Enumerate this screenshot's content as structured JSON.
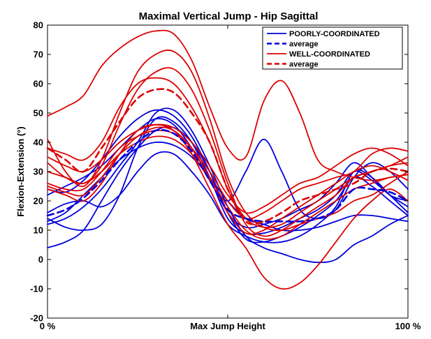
{
  "chart_data": {
    "type": "line",
    "title": "Maximal Vertical Jump - Hip Sagittal",
    "xlabel": "",
    "ylabel": "Flexion-Extension (°)",
    "xlim": [
      0,
      100
    ],
    "ylim": [
      -20,
      80
    ],
    "x_ticks": [
      {
        "value": 0,
        "label": "0 %"
      },
      {
        "value": 50,
        "label": "Max Jump Height"
      },
      {
        "value": 100,
        "label": "100 %"
      }
    ],
    "y_ticks": [
      -20,
      -10,
      0,
      10,
      20,
      30,
      40,
      50,
      60,
      70,
      80
    ],
    "colors": {
      "poorly": "#0000dd",
      "well": "#dd0000"
    },
    "legend": {
      "position": "top-right",
      "entries": [
        {
          "label": "POORLY-COORDINATED",
          "group": "poorly",
          "style": "solid"
        },
        {
          "label": "average",
          "group": "poorly",
          "style": "dashed"
        },
        {
          "label": "WELL-COORDINATED",
          "group": "well",
          "style": "solid"
        },
        {
          "label": "average",
          "group": "well",
          "style": "dashed"
        }
      ]
    },
    "x": [
      0,
      5,
      10,
      15,
      20,
      25,
      30,
      35,
      40,
      45,
      50,
      55,
      60,
      65,
      70,
      75,
      80,
      85,
      90,
      95,
      100
    ],
    "series": [
      {
        "name": "poorly-1",
        "group": "poorly",
        "style": "solid",
        "values": [
          24,
          23,
          27,
          34,
          42,
          48,
          51,
          49,
          42,
          30,
          16,
          7,
          6,
          8,
          11,
          15,
          20,
          28,
          25,
          20,
          15
        ]
      },
      {
        "name": "poorly-2",
        "group": "poorly",
        "style": "solid",
        "values": [
          14,
          11,
          10,
          12,
          22,
          38,
          48,
          47,
          40,
          28,
          14,
          9,
          9,
          11,
          14,
          17,
          22,
          30,
          27,
          22,
          18
        ]
      },
      {
        "name": "poorly-3",
        "group": "poorly",
        "style": "solid",
        "values": [
          4,
          6,
          10,
          20,
          30,
          38,
          44,
          45,
          40,
          30,
          16,
          11,
          12,
          14,
          17,
          20,
          26,
          33,
          28,
          22,
          20
        ]
      },
      {
        "name": "poorly-4",
        "group": "poorly",
        "style": "solid",
        "values": [
          16,
          19,
          20,
          18,
          22,
          30,
          36,
          36,
          30,
          22,
          12,
          8,
          6,
          6,
          8,
          12,
          18,
          30,
          28,
          22,
          16
        ]
      },
      {
        "name": "poorly-5",
        "group": "poorly",
        "style": "solid",
        "values": [
          13,
          16,
          22,
          28,
          34,
          38,
          40,
          39,
          35,
          28,
          20,
          14,
          12,
          10,
          10,
          11,
          13,
          15,
          15,
          14,
          13
        ]
      },
      {
        "name": "poorly-6",
        "group": "poorly",
        "style": "solid",
        "values": [
          22,
          25,
          28,
          32,
          38,
          44,
          48,
          46,
          38,
          28,
          20,
          30,
          41,
          30,
          17,
          14,
          17,
          28,
          33,
          30,
          24
        ]
      },
      {
        "name": "poorly-7",
        "group": "poorly",
        "style": "solid",
        "values": [
          12,
          14,
          18,
          24,
          32,
          40,
          50,
          51,
          44,
          32,
          18,
          8,
          4,
          2,
          0,
          -1,
          0,
          5,
          8,
          12,
          15
        ]
      },
      {
        "name": "poorly-average",
        "group": "poorly",
        "style": "dashed",
        "values": [
          15,
          17,
          21,
          27,
          34,
          40,
          44,
          43,
          37,
          27,
          17,
          14,
          13,
          13,
          13,
          14,
          17,
          24,
          24,
          23,
          20
        ]
      },
      {
        "name": "well-1",
        "group": "well",
        "style": "solid",
        "values": [
          49,
          52,
          56,
          66,
          72,
          76,
          78,
          77,
          68,
          52,
          38,
          35,
          54,
          61,
          50,
          34,
          30,
          28,
          27,
          28,
          29
        ]
      },
      {
        "name": "well-2",
        "group": "well",
        "style": "solid",
        "values": [
          41,
          30,
          25,
          34,
          50,
          64,
          70,
          71,
          64,
          48,
          28,
          16,
          11,
          10,
          12,
          14,
          16,
          20,
          22,
          26,
          30
        ]
      },
      {
        "name": "well-3",
        "group": "well",
        "style": "solid",
        "values": [
          33,
          28,
          26,
          32,
          46,
          58,
          64,
          65,
          58,
          44,
          26,
          12,
          8,
          10,
          14,
          18,
          22,
          28,
          30,
          32,
          35
        ]
      },
      {
        "name": "well-4",
        "group": "well",
        "style": "solid",
        "values": [
          38,
          36,
          34,
          40,
          52,
          60,
          62,
          60,
          52,
          40,
          24,
          14,
          11,
          12,
          16,
          20,
          24,
          28,
          30,
          32,
          33
        ]
      },
      {
        "name": "well-5",
        "group": "well",
        "style": "solid",
        "values": [
          25,
          23,
          22,
          28,
          36,
          42,
          45,
          44,
          38,
          28,
          18,
          10,
          7,
          8,
          12,
          16,
          20,
          24,
          26,
          28,
          29
        ]
      },
      {
        "name": "well-6",
        "group": "well",
        "style": "solid",
        "values": [
          30,
          28,
          26,
          30,
          36,
          40,
          42,
          41,
          36,
          27,
          16,
          9,
          10,
          14,
          18,
          22,
          26,
          30,
          32,
          30,
          27
        ]
      },
      {
        "name": "well-7",
        "group": "well",
        "style": "solid",
        "values": [
          24,
          22,
          20,
          26,
          36,
          44,
          46,
          44,
          36,
          24,
          12,
          4,
          -6,
          -10,
          -8,
          -2,
          6,
          14,
          20,
          24,
          20
        ]
      },
      {
        "name": "well-8",
        "group": "well",
        "style": "solid",
        "values": [
          26,
          24,
          24,
          30,
          38,
          42,
          44,
          43,
          38,
          30,
          20,
          14,
          16,
          20,
          24,
          26,
          28,
          30,
          36,
          38,
          37
        ]
      },
      {
        "name": "well-9",
        "group": "well",
        "style": "solid",
        "values": [
          35,
          32,
          30,
          34,
          40,
          44,
          46,
          45,
          40,
          32,
          22,
          16,
          18,
          22,
          26,
          28,
          32,
          36,
          38,
          36,
          32
        ]
      },
      {
        "name": "well-average",
        "group": "well",
        "style": "dashed",
        "values": [
          38,
          34,
          30,
          38,
          47,
          55,
          58,
          57,
          50,
          40,
          24,
          13,
          13,
          16,
          20,
          22,
          24,
          26,
          30,
          31,
          30
        ]
      }
    ]
  }
}
